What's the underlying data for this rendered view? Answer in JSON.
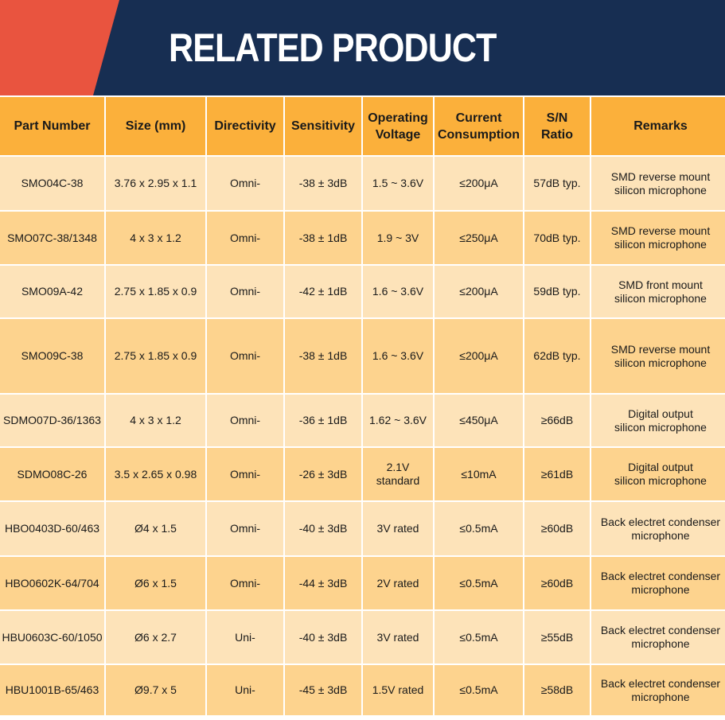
{
  "title": "RELATED PRODUCT",
  "colors": {
    "navy": "#172e52",
    "accent": "#e9543f",
    "header": "#fbb03b",
    "row_light": "#fde3b9",
    "row_dark": "#fdd38e"
  },
  "headers": [
    "Part Number",
    "Size (mm)",
    "Directivity",
    "Sensitivity",
    "Operating\nVoltage",
    "Current\nConsumption",
    "S/N\nRatio",
    "Remarks"
  ],
  "rows": [
    [
      "SMO04C-38",
      "3.76 x 2.95 x 1.1",
      "Omni-",
      "-38 ± 3dB",
      "1.5 ~ 3.6V",
      "≤200μA",
      "57dB typ.",
      "SMD reverse mount\nsilicon microphone"
    ],
    [
      "SMO07C-38/1348",
      "4 x 3 x 1.2",
      "Omni-",
      "-38 ± 1dB",
      "1.9 ~ 3V",
      "≤250μA",
      "70dB typ.",
      "SMD reverse mount\nsilicon microphone"
    ],
    [
      "SMO09A-42",
      "2.75 x 1.85 x 0.9",
      "Omni-",
      "-42 ± 1dB",
      "1.6 ~ 3.6V",
      "≤200μA",
      "59dB typ.",
      "SMD front mount\nsilicon microphone"
    ],
    [
      "SMO09C-38",
      "2.75 x 1.85 x 0.9",
      "Omni-",
      "-38 ± 1dB",
      "1.6 ~ 3.6V",
      "≤200μA",
      "62dB typ.",
      "SMD reverse mount\nsilicon microphone"
    ],
    [
      "SDMO07D-36/1363",
      "4 x 3 x 1.2",
      "Omni-",
      "-36 ± 1dB",
      "1.62 ~ 3.6V",
      "≤450μA",
      "≥66dB",
      "Digital output\nsilicon microphone"
    ],
    [
      "SDMO08C-26",
      "3.5 x 2.65 x 0.98",
      "Omni-",
      "-26 ± 3dB",
      "2.1V\nstandard",
      "≤10mA",
      "≥61dB",
      "Digital output\nsilicon microphone"
    ],
    [
      "HBO0403D-60/463",
      "Ø4 x 1.5",
      "Omni-",
      "-40 ± 3dB",
      "3V rated",
      "≤0.5mA",
      "≥60dB",
      "Back electret condenser\nmicrophone"
    ],
    [
      "HBO0602K-64/704",
      "Ø6 x 1.5",
      "Omni-",
      "-44 ± 3dB",
      "2V rated",
      "≤0.5mA",
      "≥60dB",
      "Back electret condenser\nmicrophone"
    ],
    [
      "HBU0603C-60/1050",
      "Ø6 x 2.7",
      "Uni-",
      "-40 ± 3dB",
      "3V rated",
      "≤0.5mA",
      "≥55dB",
      "Back electret condenser\nmicrophone"
    ],
    [
      "HBU1001B-65/463",
      "Ø9.7 x 5",
      "Uni-",
      "-45 ± 3dB",
      "1.5V rated",
      "≤0.5mA",
      "≥58dB",
      "Back electret condenser\nmicrophone"
    ]
  ]
}
